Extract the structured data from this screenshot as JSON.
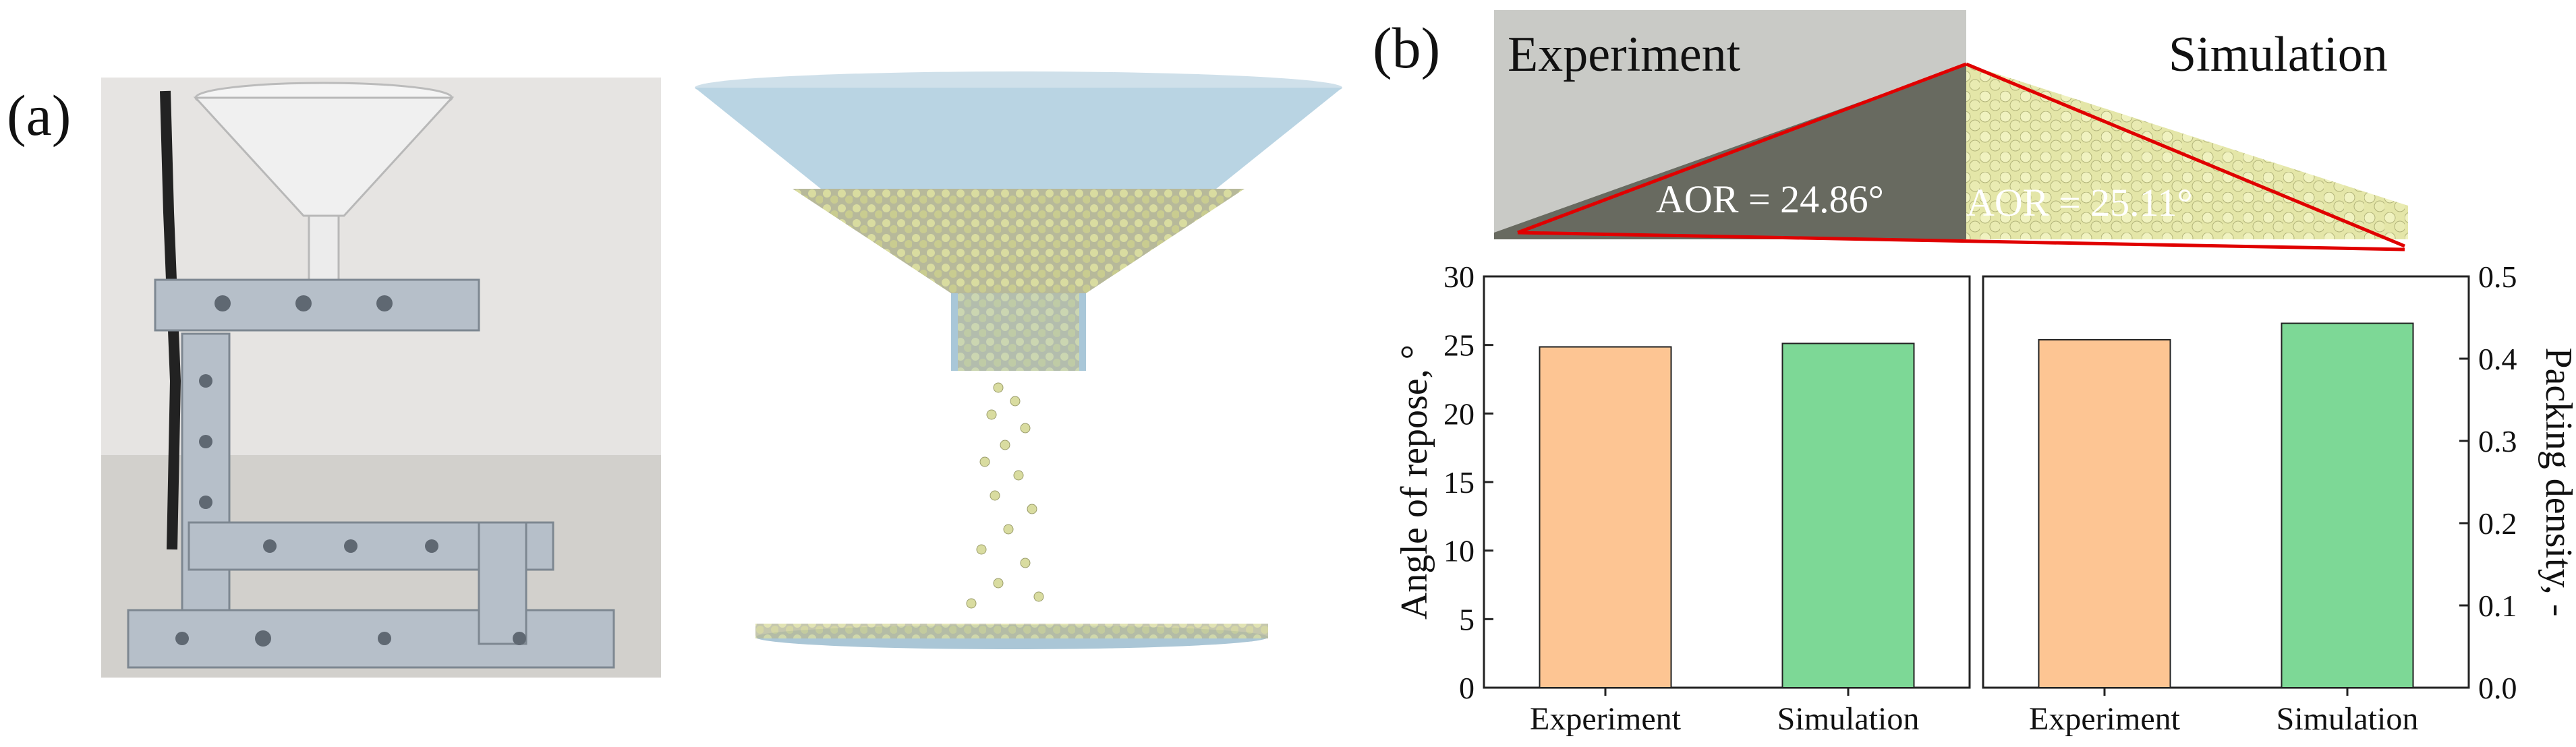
{
  "figure": {
    "panel_a_label": "(a)",
    "panel_b_label": "(b)"
  },
  "panel_b": {
    "photo_left_title": "Experiment",
    "photo_right_title": "Simulation",
    "aor_experiment": "AOR = 24.86°",
    "aor_simulation": "AOR = 25.11°"
  },
  "colors": {
    "experiment_bar": "#fdc593",
    "simulation_bar": "#7dd896",
    "aor_line": "#e00000",
    "particle": "#d9dca0",
    "funnel": "#b9d4e3"
  },
  "chart_data": [
    {
      "type": "bar",
      "categories": [
        "Experiment",
        "Simulation"
      ],
      "values": [
        24.86,
        25.11
      ],
      "ylabel": "Angle of repose, °",
      "ylim": [
        0,
        30
      ],
      "yticks": [
        "0",
        "5",
        "10",
        "15",
        "20",
        "25",
        "30"
      ]
    },
    {
      "type": "bar",
      "categories": [
        "Experiment",
        "Simulation"
      ],
      "values": [
        0.423,
        0.443
      ],
      "ylabel": "Packing density, -",
      "ylim": [
        0,
        0.5
      ],
      "yticks": [
        "0.0",
        "0.1",
        "0.2",
        "0.3",
        "0.4",
        "0.5"
      ]
    }
  ]
}
